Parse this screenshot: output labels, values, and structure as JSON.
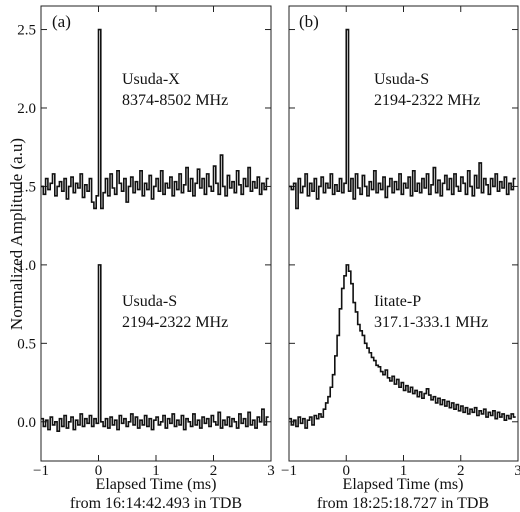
{
  "figure": {
    "ylabel": "Normalized Amplitude (a.u)"
  },
  "chart_data": [
    {
      "type": "line",
      "panel_label": "(a)",
      "xlabel": "Elapsed Time (ms)",
      "xlabel_line2": "from 16:14:42.493 in TDB",
      "xlim": [
        -1,
        3
      ],
      "ylim": [
        -0.25,
        2.65
      ],
      "x_ticks": [
        -1,
        0,
        1,
        2,
        3
      ],
      "x_tick_labels": [
        "−1",
        "0",
        "1",
        "2",
        "3"
      ],
      "y_ticks": [
        0.0,
        0.5,
        1.0,
        1.5,
        2.0,
        2.5
      ],
      "y_tick_labels": [
        "0.0",
        "0.5",
        "1.0",
        "1.5",
        "2.0",
        "2.5"
      ],
      "grid": false,
      "series": [
        {
          "name": "Usuda-X",
          "label_line1": "Usuda-X",
          "label_line2": "8374-8502 MHz",
          "step": true,
          "x": [
            -0.98,
            -0.94,
            -0.9,
            -0.86,
            -0.82,
            -0.78,
            -0.74,
            -0.7,
            -0.66,
            -0.62,
            -0.58,
            -0.54,
            -0.5,
            -0.46,
            -0.42,
            -0.38,
            -0.34,
            -0.3,
            -0.26,
            -0.22,
            -0.18,
            -0.14,
            -0.1,
            -0.06,
            -0.02,
            0.02,
            0.06,
            0.1,
            0.14,
            0.18,
            0.22,
            0.26,
            0.3,
            0.34,
            0.38,
            0.42,
            0.46,
            0.5,
            0.54,
            0.58,
            0.62,
            0.66,
            0.7,
            0.74,
            0.78,
            0.82,
            0.86,
            0.9,
            0.94,
            0.98,
            1.02,
            1.06,
            1.1,
            1.14,
            1.18,
            1.22,
            1.26,
            1.3,
            1.34,
            1.38,
            1.42,
            1.46,
            1.5,
            1.54,
            1.58,
            1.62,
            1.66,
            1.7,
            1.74,
            1.78,
            1.82,
            1.86,
            1.9,
            1.94,
            1.98,
            2.02,
            2.06,
            2.1,
            2.14,
            2.18,
            2.22,
            2.26,
            2.3,
            2.34,
            2.38,
            2.42,
            2.46,
            2.5,
            2.54,
            2.58,
            2.62,
            2.66,
            2.7,
            2.74,
            2.78,
            2.82,
            2.86,
            2.9,
            2.94
          ],
          "y": [
            1.5,
            1.45,
            1.55,
            1.48,
            1.52,
            1.58,
            1.44,
            1.5,
            1.53,
            1.47,
            1.55,
            1.42,
            1.5,
            1.56,
            1.46,
            1.52,
            1.49,
            1.58,
            1.43,
            1.51,
            1.47,
            1.55,
            1.4,
            1.36,
            1.44,
            2.5,
            1.36,
            1.46,
            1.55,
            1.44,
            1.58,
            1.49,
            1.45,
            1.6,
            1.52,
            1.47,
            1.55,
            1.4,
            1.5,
            1.56,
            1.46,
            1.53,
            1.48,
            1.6,
            1.44,
            1.52,
            1.48,
            1.57,
            1.42,
            1.5,
            1.55,
            1.47,
            1.6,
            1.45,
            1.52,
            1.49,
            1.56,
            1.44,
            1.53,
            1.48,
            1.58,
            1.46,
            1.51,
            1.62,
            1.47,
            1.55,
            1.44,
            1.52,
            1.61,
            1.49,
            1.55,
            1.45,
            1.58,
            1.5,
            1.47,
            1.63,
            1.52,
            1.45,
            1.7,
            1.5,
            1.44,
            1.57,
            1.49,
            1.53,
            1.46,
            1.6,
            1.51,
            1.45,
            1.55,
            1.5,
            1.62,
            1.47,
            1.53,
            1.49,
            1.56,
            1.45,
            1.52,
            1.48,
            1.55
          ]
        },
        {
          "name": "Usuda-S",
          "label_line1": "Usuda-S",
          "label_line2": "2194-2322 MHz",
          "step": true,
          "x": [
            -0.98,
            -0.94,
            -0.9,
            -0.86,
            -0.82,
            -0.78,
            -0.74,
            -0.7,
            -0.66,
            -0.62,
            -0.58,
            -0.54,
            -0.5,
            -0.46,
            -0.42,
            -0.38,
            -0.34,
            -0.3,
            -0.26,
            -0.22,
            -0.18,
            -0.14,
            -0.1,
            -0.06,
            -0.02,
            0.02,
            0.06,
            0.1,
            0.14,
            0.18,
            0.22,
            0.26,
            0.3,
            0.34,
            0.38,
            0.42,
            0.46,
            0.5,
            0.54,
            0.58,
            0.62,
            0.66,
            0.7,
            0.74,
            0.78,
            0.82,
            0.86,
            0.9,
            0.94,
            0.98,
            1.02,
            1.06,
            1.1,
            1.14,
            1.18,
            1.22,
            1.26,
            1.3,
            1.34,
            1.38,
            1.42,
            1.46,
            1.5,
            1.54,
            1.58,
            1.62,
            1.66,
            1.7,
            1.74,
            1.78,
            1.82,
            1.86,
            1.9,
            1.94,
            1.98,
            2.02,
            2.06,
            2.1,
            2.14,
            2.18,
            2.22,
            2.26,
            2.3,
            2.34,
            2.38,
            2.42,
            2.46,
            2.5,
            2.54,
            2.58,
            2.62,
            2.66,
            2.7,
            2.74,
            2.78,
            2.82,
            2.86,
            2.9,
            2.94
          ],
          "y": [
            0.02,
            -0.03,
            0.01,
            -0.05,
            0.03,
            -0.02,
            0.0,
            -0.06,
            0.02,
            -0.03,
            0.04,
            -0.04,
            0.0,
            0.03,
            -0.05,
            0.01,
            -0.02,
            0.05,
            -0.03,
            0.02,
            -0.01,
            0.04,
            -0.03,
            0.02,
            -0.01,
            1.0,
            0.0,
            -0.03,
            0.02,
            -0.04,
            0.03,
            -0.02,
            0.01,
            -0.05,
            0.04,
            -0.01,
            0.02,
            -0.03,
            0.0,
            0.05,
            -0.02,
            0.03,
            -0.04,
            0.01,
            -0.02,
            0.04,
            -0.03,
            0.02,
            -0.05,
            0.01,
            0.03,
            -0.02,
            0.0,
            0.04,
            -0.04,
            0.02,
            -0.01,
            0.05,
            -0.03,
            0.01,
            -0.02,
            0.04,
            -0.05,
            0.02,
            0.0,
            -0.03,
            0.05,
            -0.02,
            0.01,
            -0.04,
            0.03,
            -0.01,
            0.02,
            -0.03,
            0.04,
            0.0,
            -0.02,
            0.06,
            -0.04,
            0.01,
            -0.02,
            0.03,
            -0.03,
            0.02,
            0.0,
            -0.04,
            0.05,
            -0.01,
            0.02,
            -0.03,
            0.06,
            -0.02,
            0.01,
            -0.04,
            0.03,
            0.0,
            0.08,
            -0.02,
            0.03
          ]
        }
      ]
    },
    {
      "type": "line",
      "panel_label": "(b)",
      "xlabel": "Elapsed Time (ms)",
      "xlabel_line2": "from 18:25:18.727 in TDB",
      "xlim": [
        -1,
        3
      ],
      "ylim": [
        -0.25,
        2.65
      ],
      "x_ticks": [
        -1,
        0,
        1,
        2,
        3
      ],
      "x_tick_labels": [
        "−1",
        "0",
        "1",
        "2",
        "3"
      ],
      "y_ticks": [
        0.0,
        0.5,
        1.0,
        1.5,
        2.0,
        2.5
      ],
      "grid": false,
      "series": [
        {
          "name": "Usuda-S",
          "label_line1": "Usuda-S",
          "label_line2": "2194-2322 MHz",
          "step": true,
          "x": [
            -0.98,
            -0.94,
            -0.9,
            -0.86,
            -0.82,
            -0.78,
            -0.74,
            -0.7,
            -0.66,
            -0.62,
            -0.58,
            -0.54,
            -0.5,
            -0.46,
            -0.42,
            -0.38,
            -0.34,
            -0.3,
            -0.26,
            -0.22,
            -0.18,
            -0.14,
            -0.1,
            -0.06,
            -0.02,
            0.02,
            0.06,
            0.1,
            0.14,
            0.18,
            0.22,
            0.26,
            0.3,
            0.34,
            0.38,
            0.42,
            0.46,
            0.5,
            0.54,
            0.58,
            0.62,
            0.66,
            0.7,
            0.74,
            0.78,
            0.82,
            0.86,
            0.9,
            0.94,
            0.98,
            1.02,
            1.06,
            1.1,
            1.14,
            1.18,
            1.22,
            1.26,
            1.3,
            1.34,
            1.38,
            1.42,
            1.46,
            1.5,
            1.54,
            1.58,
            1.62,
            1.66,
            1.7,
            1.74,
            1.78,
            1.82,
            1.86,
            1.9,
            1.94,
            1.98,
            2.02,
            2.06,
            2.1,
            2.14,
            2.18,
            2.22,
            2.26,
            2.3,
            2.34,
            2.38,
            2.42,
            2.46,
            2.5,
            2.54,
            2.58,
            2.62,
            2.66,
            2.7,
            2.74,
            2.78,
            2.82,
            2.86,
            2.9,
            2.94
          ],
          "y": [
            1.5,
            1.48,
            1.52,
            1.36,
            1.55,
            1.46,
            1.5,
            1.58,
            1.44,
            1.52,
            1.47,
            1.55,
            1.42,
            1.5,
            1.56,
            1.46,
            1.52,
            1.49,
            1.58,
            1.45,
            1.51,
            1.47,
            1.55,
            1.46,
            1.52,
            2.5,
            1.47,
            1.55,
            1.42,
            1.58,
            1.49,
            1.45,
            1.57,
            1.5,
            1.44,
            1.53,
            1.48,
            1.6,
            1.46,
            1.52,
            1.48,
            1.56,
            1.43,
            1.5,
            1.55,
            1.46,
            1.53,
            1.48,
            1.58,
            1.45,
            1.52,
            1.49,
            1.56,
            1.44,
            1.6,
            1.47,
            1.52,
            1.46,
            1.55,
            1.49,
            1.58,
            1.45,
            1.51,
            1.62,
            1.46,
            1.54,
            1.44,
            1.52,
            1.57,
            1.48,
            1.55,
            1.45,
            1.58,
            1.5,
            1.47,
            1.56,
            1.52,
            1.45,
            1.6,
            1.5,
            1.44,
            1.57,
            1.49,
            1.65,
            1.46,
            1.55,
            1.51,
            1.45,
            1.55,
            1.5,
            1.58,
            1.47,
            1.53,
            1.49,
            1.56,
            1.45,
            1.52,
            1.48,
            1.55
          ]
        },
        {
          "name": "Iitate-P",
          "label_line1": "Iitate-P",
          "label_line2": "317.1-333.1 MHz",
          "step": true,
          "x": [
            -0.98,
            -0.94,
            -0.9,
            -0.86,
            -0.82,
            -0.78,
            -0.74,
            -0.7,
            -0.66,
            -0.62,
            -0.58,
            -0.54,
            -0.5,
            -0.46,
            -0.42,
            -0.38,
            -0.34,
            -0.3,
            -0.26,
            -0.22,
            -0.18,
            -0.14,
            -0.1,
            -0.06,
            -0.02,
            0.02,
            0.06,
            0.1,
            0.14,
            0.18,
            0.22,
            0.26,
            0.3,
            0.34,
            0.38,
            0.42,
            0.46,
            0.5,
            0.54,
            0.58,
            0.62,
            0.66,
            0.7,
            0.74,
            0.78,
            0.82,
            0.86,
            0.9,
            0.94,
            0.98,
            1.02,
            1.06,
            1.1,
            1.14,
            1.18,
            1.22,
            1.26,
            1.3,
            1.34,
            1.38,
            1.42,
            1.46,
            1.5,
            1.54,
            1.58,
            1.62,
            1.66,
            1.7,
            1.74,
            1.78,
            1.82,
            1.86,
            1.9,
            1.94,
            1.98,
            2.02,
            2.06,
            2.1,
            2.14,
            2.18,
            2.22,
            2.26,
            2.3,
            2.34,
            2.38,
            2.42,
            2.46,
            2.5,
            2.54,
            2.58,
            2.62,
            2.66,
            2.7,
            2.74,
            2.78,
            2.82,
            2.86,
            2.9,
            2.94
          ],
          "y": [
            0.02,
            -0.02,
            0.01,
            -0.03,
            0.03,
            -0.01,
            0.02,
            -0.04,
            0.01,
            0.03,
            -0.02,
            0.04,
            0.02,
            0.05,
            0.03,
            0.08,
            0.12,
            0.16,
            0.22,
            0.3,
            0.42,
            0.55,
            0.72,
            0.85,
            0.93,
            1.0,
            0.96,
            0.88,
            0.76,
            0.7,
            0.62,
            0.58,
            0.55,
            0.5,
            0.47,
            0.44,
            0.41,
            0.39,
            0.36,
            0.35,
            0.32,
            0.3,
            0.33,
            0.28,
            0.26,
            0.29,
            0.24,
            0.27,
            0.22,
            0.25,
            0.2,
            0.23,
            0.19,
            0.22,
            0.18,
            0.2,
            0.16,
            0.19,
            0.15,
            0.18,
            0.21,
            0.17,
            0.14,
            0.16,
            0.12,
            0.15,
            0.11,
            0.14,
            0.1,
            0.13,
            0.09,
            0.12,
            0.08,
            0.11,
            0.07,
            0.1,
            0.06,
            0.09,
            0.05,
            0.08,
            0.06,
            0.09,
            0.04,
            0.07,
            0.05,
            0.08,
            0.03,
            0.06,
            0.04,
            0.07,
            0.02,
            0.06,
            0.03,
            0.05,
            0.01,
            0.04,
            0.02,
            0.05,
            0.03
          ]
        }
      ]
    }
  ]
}
